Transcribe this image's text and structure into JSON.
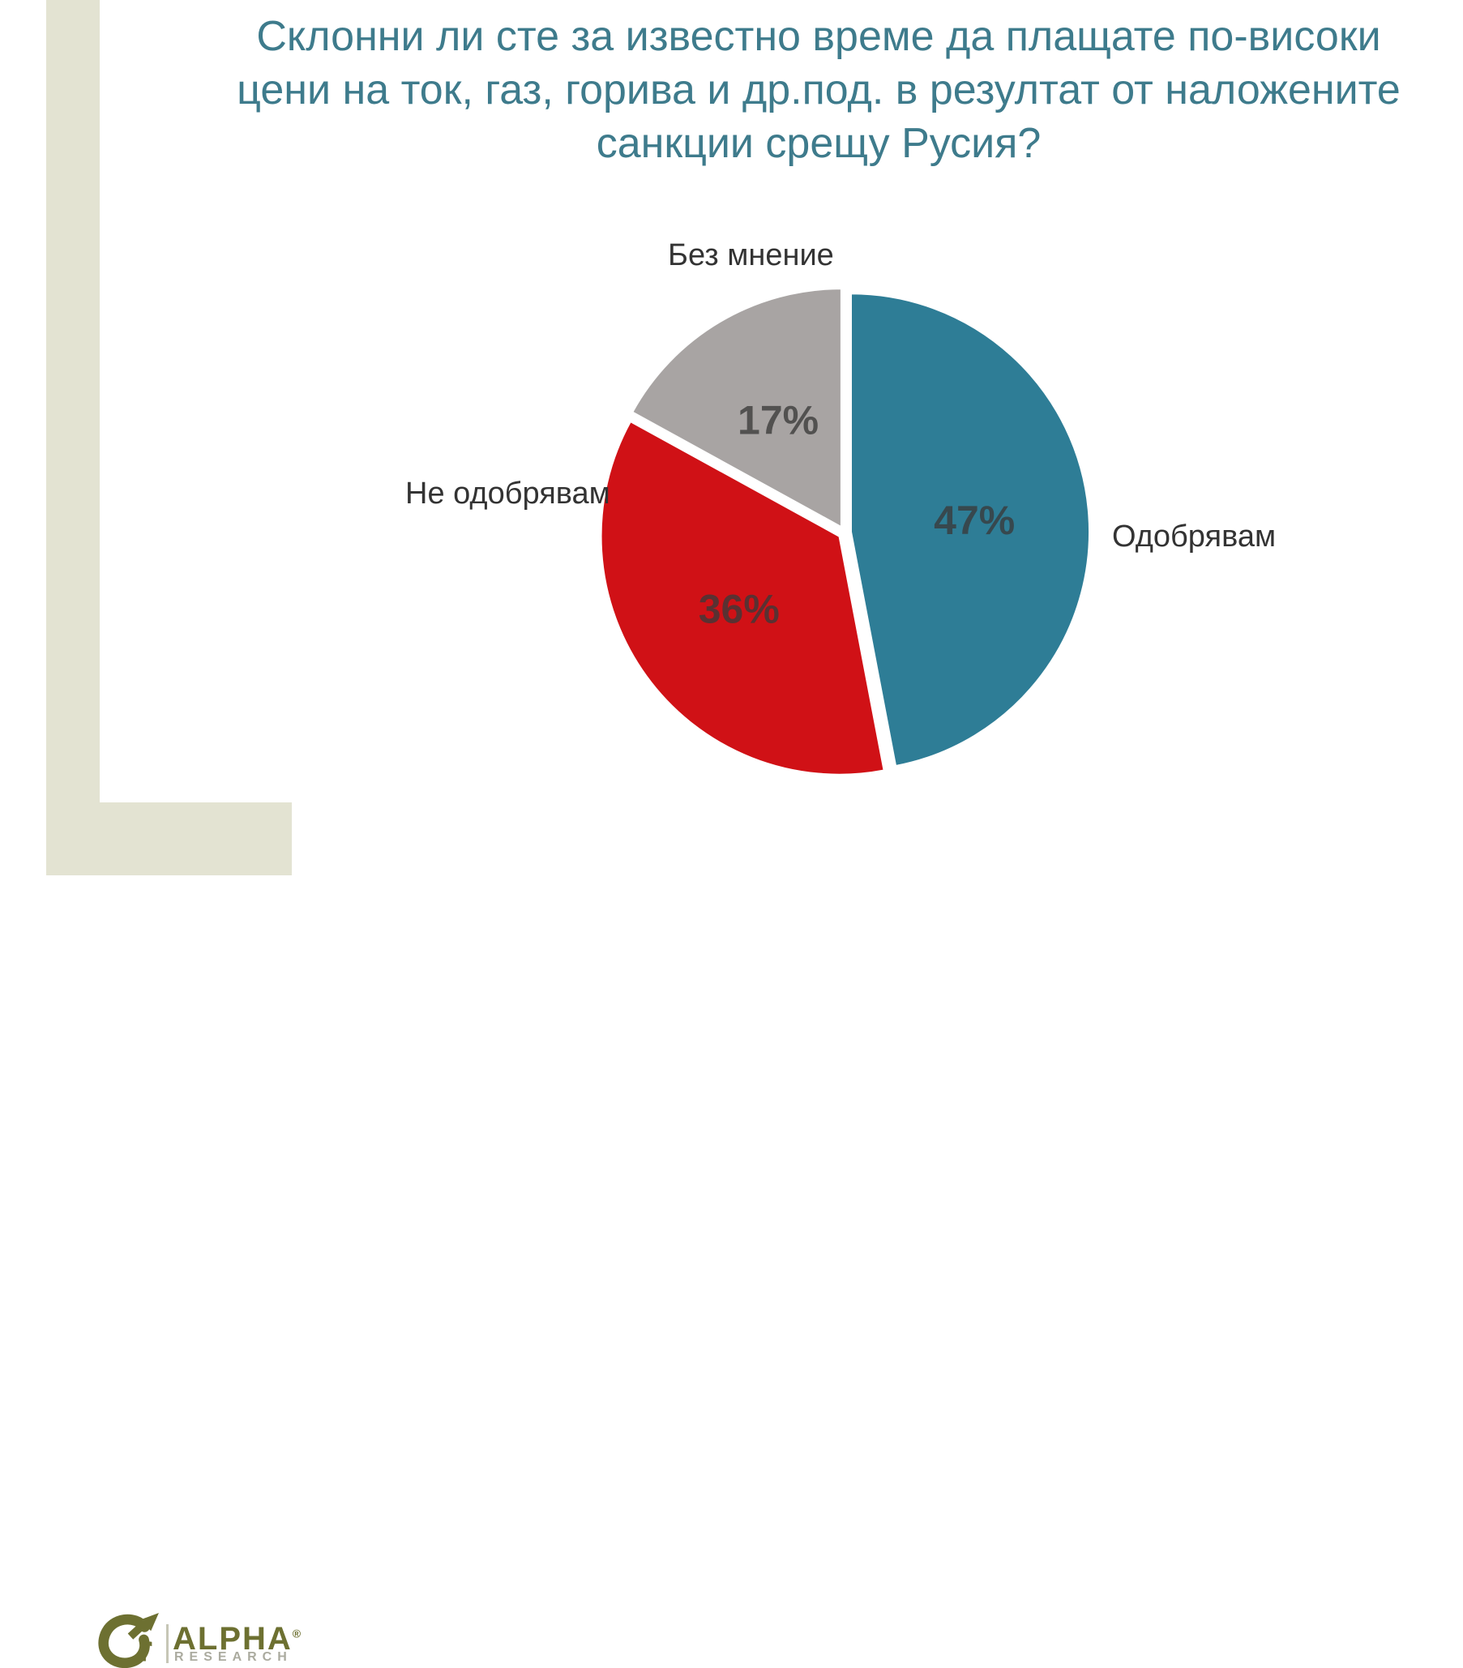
{
  "title": {
    "lines": [
      "Склонни ли сте за известно време да плащате по-високи",
      "цени на ток, газ, горива и др.под. в резултат от наложените",
      "санкции срещу Русия?"
    ],
    "color": "#3e7b8c"
  },
  "chart_data": {
    "type": "pie",
    "title": "Склонни ли сте за известно време да плащате по-високи цени на ток, газ, горива и др.под. в резултат от наложените санкции срещу Русия?",
    "unit": "%",
    "start_angle_deg": 0,
    "direction": "clockwise",
    "exploded": true,
    "slices": [
      {
        "label": "Одобрявам",
        "value": 47,
        "color": "#2e7d96"
      },
      {
        "label": "Не одобрявам",
        "value": 36,
        "color": "#d01116"
      },
      {
        "label": "Без мнение",
        "value": 17,
        "color": "#a8a4a3"
      }
    ],
    "data_label_color": "#3a3a3a",
    "legend": "none"
  },
  "logo": {
    "brand": "ALPHA",
    "registered": "®",
    "sub": "RESEARCH",
    "brand_color": "#6d7031",
    "sub_color": "#abab9f",
    "panel_color": "#e3e3d2"
  }
}
